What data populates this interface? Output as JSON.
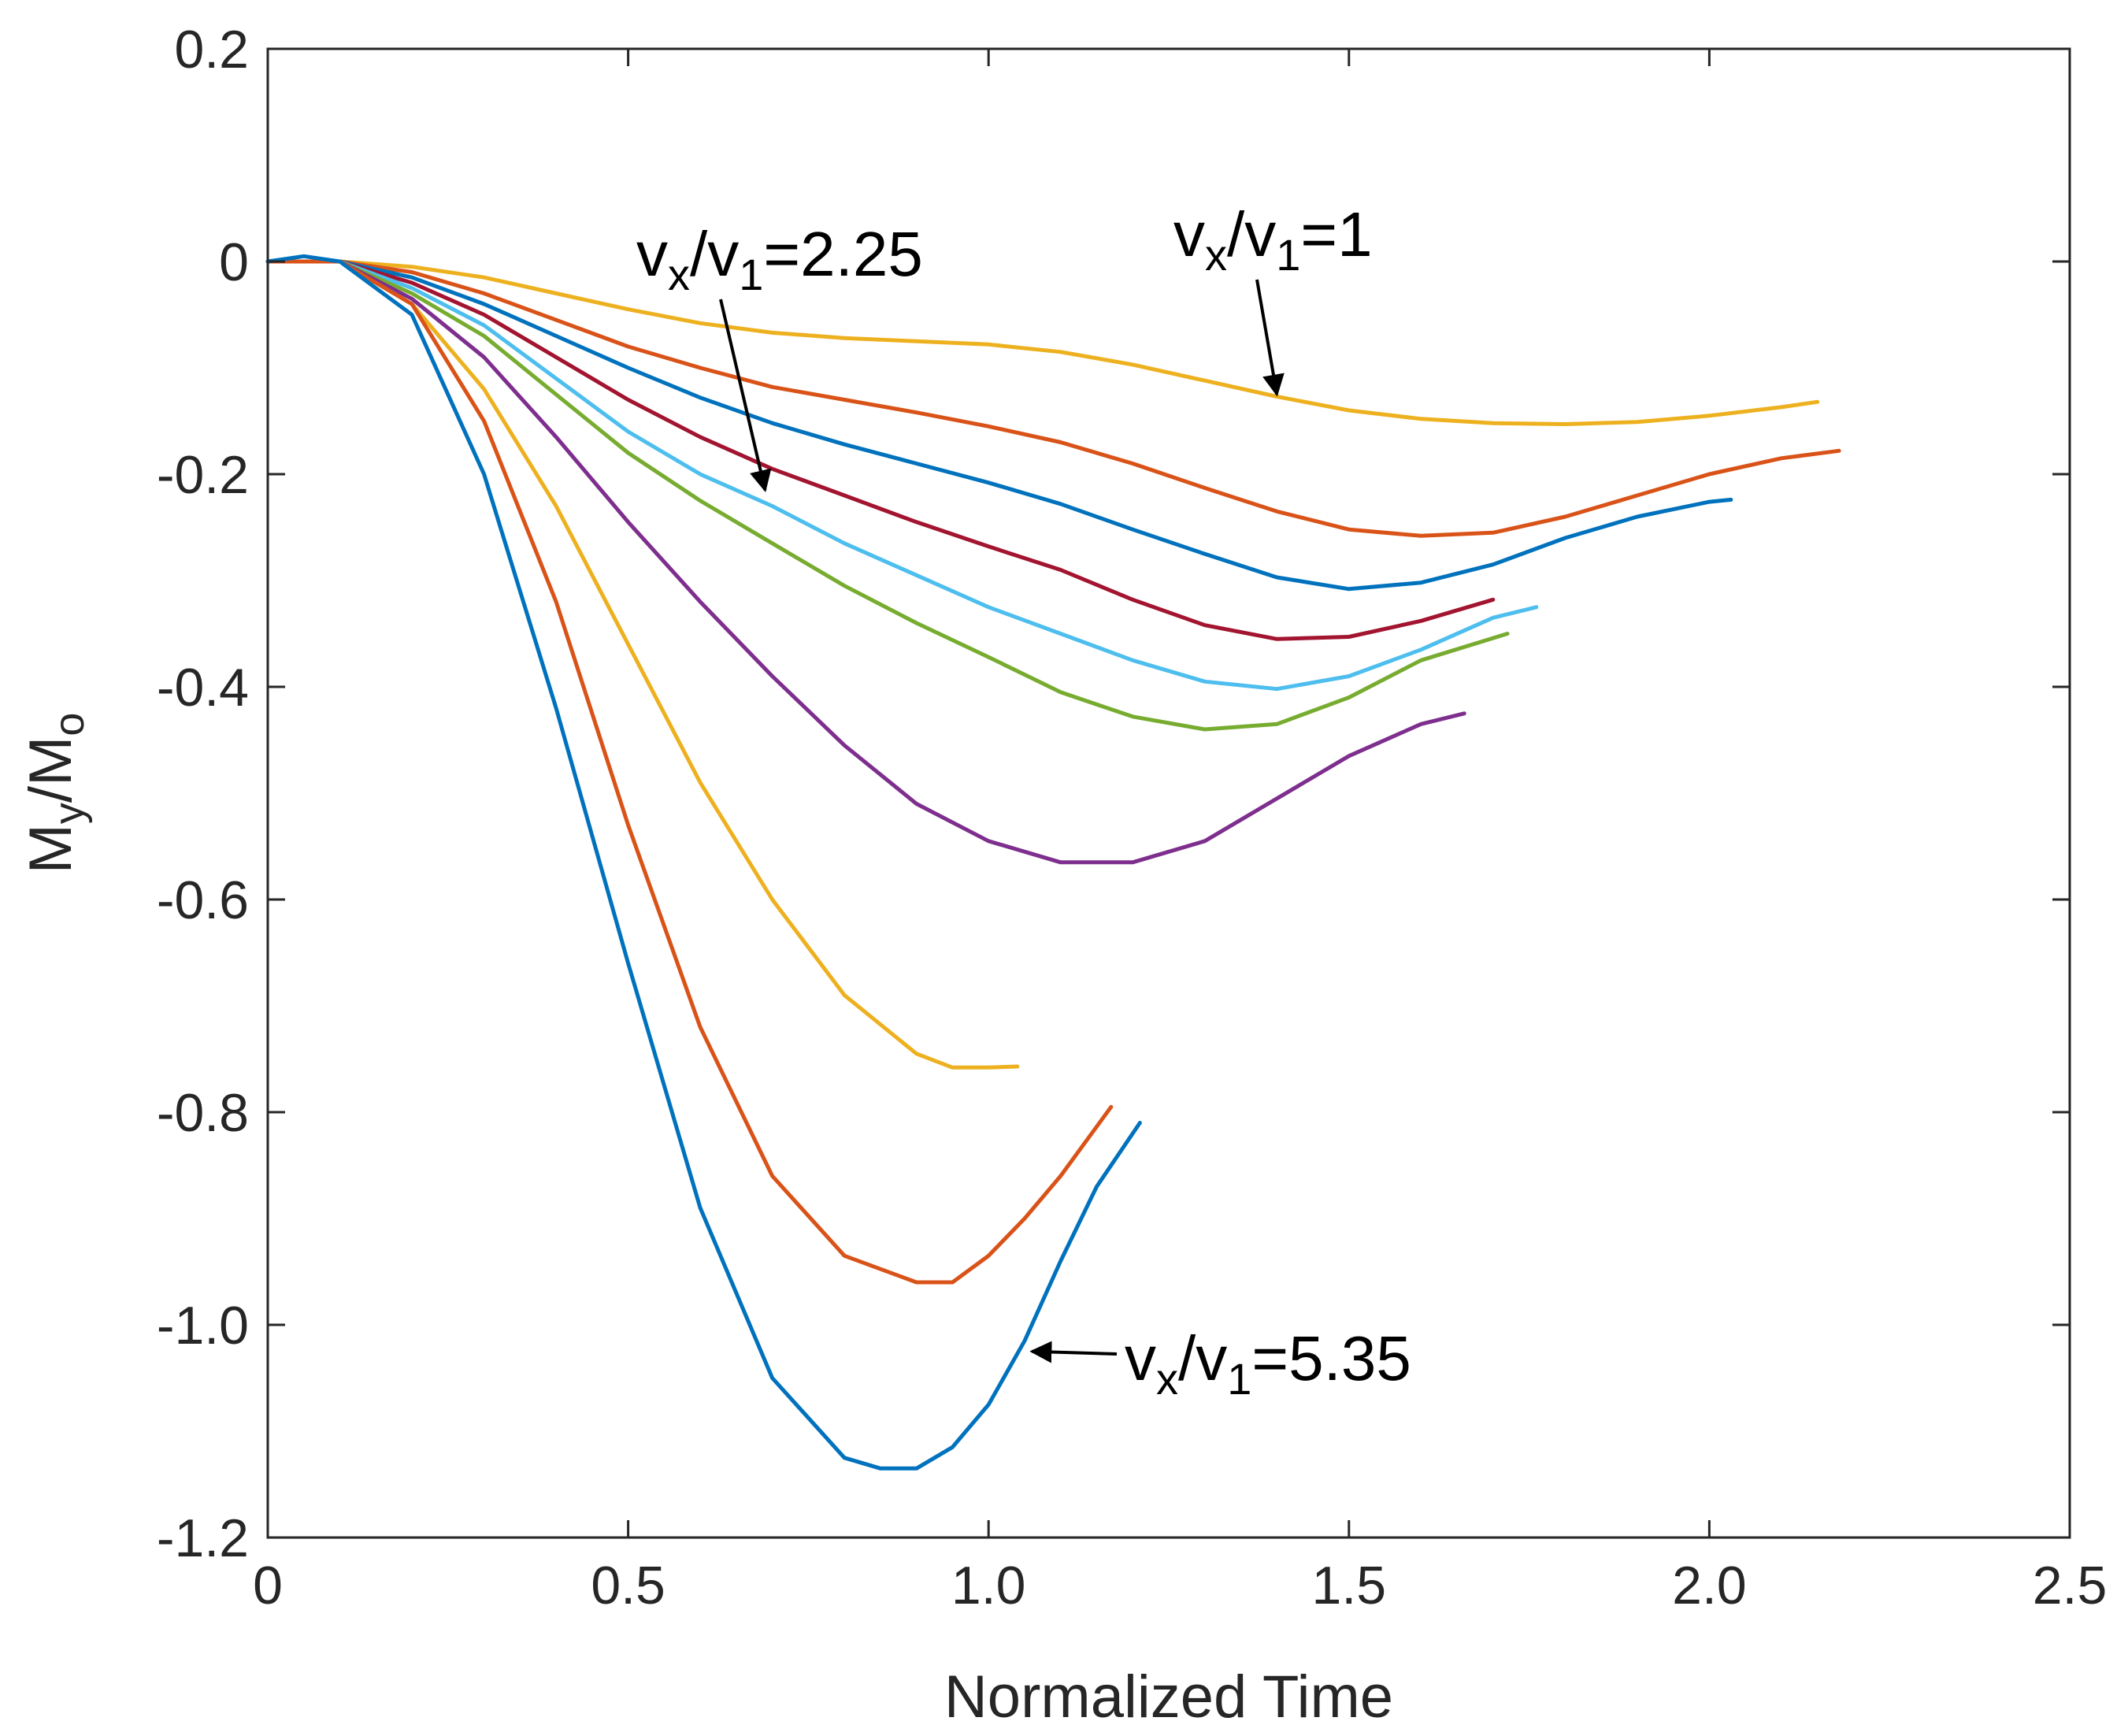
{
  "chart_data": {
    "type": "line",
    "title": "",
    "xlabel": "Normalized Time",
    "ylabel": {
      "base": "M",
      "sub1": "y",
      "mid": "/M",
      "sub2": "o"
    },
    "xlim": [
      0,
      2.5
    ],
    "ylim": [
      -1.2,
      0.2
    ],
    "xticks": [
      0,
      0.5,
      1.0,
      1.5,
      2.0,
      2.5
    ],
    "xtick_labels": [
      "0",
      "0.5",
      "1.0",
      "1.5",
      "2.0",
      "2.5"
    ],
    "yticks": [
      0.2,
      0,
      -0.2,
      -0.4,
      -0.6,
      -0.8,
      -1.0,
      -1.2
    ],
    "ytick_labels": [
      "0.2",
      "0",
      "-0.2",
      "-0.4",
      "-0.6",
      "-0.8",
      "-1.0",
      "-1.2"
    ],
    "grid": false,
    "series": [
      {
        "name": "v_x/v_1=1",
        "color": "#EDB120",
        "x": [
          0,
          0.1,
          0.2,
          0.3,
          0.4,
          0.5,
          0.6,
          0.7,
          0.8,
          0.9,
          1.0,
          1.1,
          1.2,
          1.3,
          1.4,
          1.5,
          1.6,
          1.7,
          1.8,
          1.9,
          2.0,
          2.1,
          2.15
        ],
        "y": [
          0,
          0,
          -0.005,
          -0.015,
          -0.03,
          -0.045,
          -0.058,
          -0.067,
          -0.072,
          -0.075,
          -0.078,
          -0.085,
          -0.097,
          -0.112,
          -0.127,
          -0.14,
          -0.148,
          -0.152,
          -0.153,
          -0.151,
          -0.145,
          -0.137,
          -0.132
        ]
      },
      {
        "name": "series-2",
        "color": "#D95319",
        "x": [
          0,
          0.1,
          0.2,
          0.3,
          0.4,
          0.5,
          0.6,
          0.7,
          0.8,
          0.9,
          1.0,
          1.1,
          1.2,
          1.3,
          1.4,
          1.5,
          1.6,
          1.7,
          1.8,
          1.9,
          2.0,
          2.1,
          2.18
        ],
        "y": [
          0,
          0,
          -0.01,
          -0.03,
          -0.055,
          -0.08,
          -0.1,
          -0.118,
          -0.13,
          -0.142,
          -0.155,
          -0.17,
          -0.19,
          -0.213,
          -0.235,
          -0.252,
          -0.258,
          -0.255,
          -0.24,
          -0.22,
          -0.2,
          -0.185,
          -0.178
        ]
      },
      {
        "name": "series-3",
        "color": "#0072BD",
        "x": [
          0,
          0.1,
          0.2,
          0.3,
          0.4,
          0.5,
          0.6,
          0.7,
          0.8,
          0.9,
          1.0,
          1.1,
          1.2,
          1.3,
          1.4,
          1.5,
          1.6,
          1.7,
          1.8,
          1.9,
          2.0,
          2.03
        ],
        "y": [
          0,
          0,
          -0.015,
          -0.04,
          -0.07,
          -0.1,
          -0.128,
          -0.152,
          -0.172,
          -0.19,
          -0.208,
          -0.228,
          -0.252,
          -0.275,
          -0.297,
          -0.308,
          -0.302,
          -0.285,
          -0.26,
          -0.24,
          -0.226,
          -0.224
        ]
      },
      {
        "name": "series-4",
        "color": "#A2142F",
        "x": [
          0,
          0.1,
          0.2,
          0.3,
          0.4,
          0.5,
          0.6,
          0.7,
          0.8,
          0.9,
          1.0,
          1.1,
          1.2,
          1.3,
          1.4,
          1.5,
          1.6,
          1.7
        ],
        "y": [
          0,
          0,
          -0.02,
          -0.05,
          -0.09,
          -0.13,
          -0.165,
          -0.195,
          -0.22,
          -0.245,
          -0.268,
          -0.29,
          -0.318,
          -0.342,
          -0.355,
          -0.353,
          -0.338,
          -0.318
        ]
      },
      {
        "name": "v_x/v_1=2.25",
        "color": "#4DBEEE",
        "x": [
          0,
          0.1,
          0.2,
          0.3,
          0.4,
          0.5,
          0.6,
          0.7,
          0.8,
          0.9,
          1.0,
          1.1,
          1.2,
          1.3,
          1.4,
          1.5,
          1.6,
          1.7,
          1.76
        ],
        "y": [
          0,
          0,
          -0.025,
          -0.06,
          -0.11,
          -0.16,
          -0.2,
          -0.23,
          -0.265,
          -0.295,
          -0.325,
          -0.35,
          -0.375,
          -0.395,
          -0.402,
          -0.39,
          -0.365,
          -0.335,
          -0.325
        ]
      },
      {
        "name": "series-6",
        "color": "#77AC30",
        "x": [
          0,
          0.1,
          0.2,
          0.3,
          0.4,
          0.5,
          0.6,
          0.7,
          0.8,
          0.9,
          1.0,
          1.1,
          1.2,
          1.3,
          1.4,
          1.5,
          1.6,
          1.72
        ],
        "y": [
          0,
          0,
          -0.03,
          -0.07,
          -0.125,
          -0.18,
          -0.225,
          -0.265,
          -0.305,
          -0.34,
          -0.372,
          -0.405,
          -0.428,
          -0.44,
          -0.435,
          -0.41,
          -0.375,
          -0.35
        ]
      },
      {
        "name": "series-7",
        "color": "#7E2F8E",
        "x": [
          0,
          0.1,
          0.2,
          0.3,
          0.4,
          0.5,
          0.6,
          0.7,
          0.8,
          0.9,
          1.0,
          1.1,
          1.2,
          1.3,
          1.4,
          1.5,
          1.6,
          1.66
        ],
        "y": [
          0,
          0,
          -0.035,
          -0.09,
          -0.165,
          -0.245,
          -0.32,
          -0.39,
          -0.455,
          -0.51,
          -0.545,
          -0.565,
          -0.565,
          -0.545,
          -0.505,
          -0.465,
          -0.435,
          -0.425
        ]
      },
      {
        "name": "series-8",
        "color": "#EDB120",
        "x": [
          0,
          0.1,
          0.2,
          0.3,
          0.4,
          0.5,
          0.6,
          0.7,
          0.8,
          0.9,
          0.95,
          1.0,
          1.04
        ],
        "y": [
          0,
          0,
          -0.04,
          -0.12,
          -0.23,
          -0.36,
          -0.49,
          -0.6,
          -0.69,
          -0.745,
          -0.758,
          -0.758,
          -0.757
        ]
      },
      {
        "name": "series-9",
        "color": "#D95319",
        "x": [
          0,
          0.1,
          0.2,
          0.3,
          0.4,
          0.5,
          0.6,
          0.7,
          0.8,
          0.9,
          0.95,
          1.0,
          1.05,
          1.1,
          1.17
        ],
        "y": [
          0,
          0,
          -0.04,
          -0.15,
          -0.32,
          -0.53,
          -0.72,
          -0.86,
          -0.935,
          -0.96,
          -0.96,
          -0.935,
          -0.9,
          -0.86,
          -0.795
        ]
      },
      {
        "name": "v_x/v_1=5.35",
        "color": "#0072BD",
        "x": [
          0,
          0.05,
          0.1,
          0.2,
          0.3,
          0.4,
          0.5,
          0.6,
          0.7,
          0.8,
          0.85,
          0.9,
          0.95,
          1.0,
          1.05,
          1.1,
          1.15,
          1.21
        ],
        "y": [
          0,
          0.005,
          0,
          -0.05,
          -0.2,
          -0.42,
          -0.66,
          -0.89,
          -1.05,
          -1.125,
          -1.135,
          -1.135,
          -1.115,
          -1.075,
          -1.015,
          -0.94,
          -0.87,
          -0.81
        ]
      }
    ],
    "annotations": [
      {
        "id": "vx1",
        "base": "v",
        "sub1": "x",
        "mid": "/v",
        "sub2": "1",
        "tail": "=1",
        "target": [
          1.4,
          -0.125
        ]
      },
      {
        "id": "vx225",
        "base": "v",
        "sub1": "x",
        "mid": "/v",
        "sub2": "1",
        "tail": "=2.25",
        "target": [
          0.69,
          -0.215
        ]
      },
      {
        "id": "vx535",
        "base": "v",
        "sub1": "x",
        "mid": "/v",
        "sub2": "1",
        "tail": "=5.35",
        "target": [
          1.06,
          -1.025
        ]
      }
    ]
  }
}
